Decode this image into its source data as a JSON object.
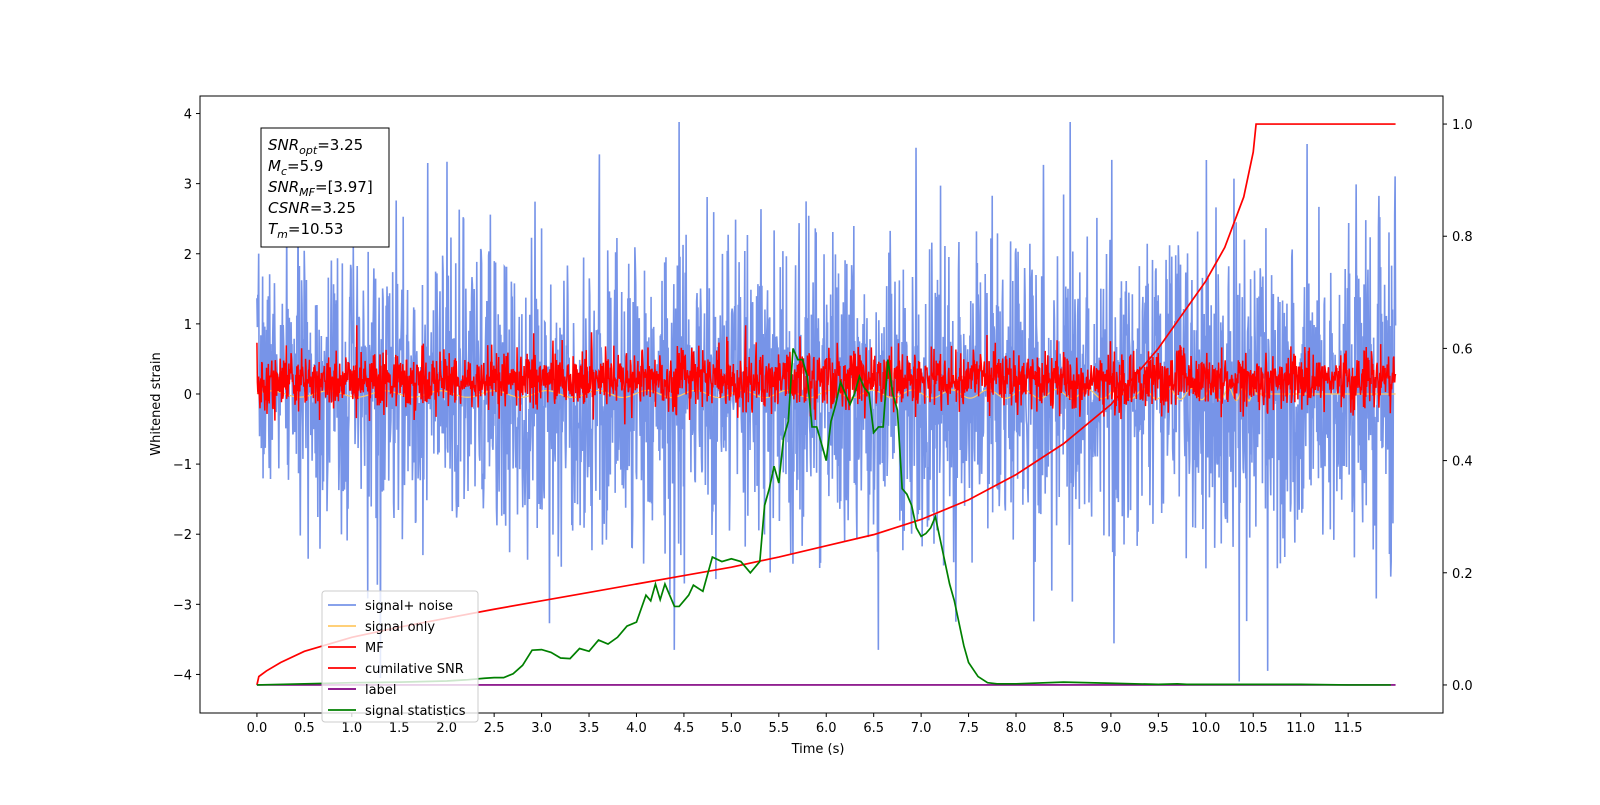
{
  "chart_data": {
    "type": "line",
    "xlabel": "Time (s)",
    "ylabel": "Whitened strain",
    "xlim": [
      -0.6,
      12.5
    ],
    "ylim": [
      -4.55,
      4.25
    ],
    "ylim_right": [
      -0.05,
      1.05
    ],
    "xticks": [
      0.0,
      0.5,
      1.0,
      1.5,
      2.0,
      2.5,
      3.0,
      3.5,
      4.0,
      4.5,
      5.0,
      5.5,
      6.0,
      6.5,
      7.0,
      7.5,
      8.0,
      8.5,
      9.0,
      9.5,
      10.0,
      10.5,
      11.0,
      11.5
    ],
    "xtick_labels": [
      "0.0",
      "0.5",
      "1.0",
      "1.5",
      "2.0",
      "2.5",
      "3.0",
      "3.5",
      "4.0",
      "4.5",
      "5.0",
      "5.5",
      "6.0",
      "6.5",
      "7.0",
      "7.5",
      "8.0",
      "8.5",
      "9.0",
      "9.5",
      "10.0",
      "10.5",
      "11.0",
      "11.5"
    ],
    "yticks": [
      -4,
      -3,
      -2,
      -1,
      0,
      1,
      2,
      3,
      4
    ],
    "ytick_labels": [
      "−4",
      "−3",
      "−2",
      "−1",
      "0",
      "1",
      "2",
      "3",
      "4"
    ],
    "yticks_right": [
      0.0,
      0.2,
      0.4,
      0.6,
      0.8,
      1.0
    ],
    "ytick_labels_right": [
      "0.0",
      "0.2",
      "0.4",
      "0.6",
      "0.8",
      "1.0"
    ],
    "grid": false,
    "legend_position": "lower-left",
    "stats_box": [
      {
        "sym": "SNR",
        "sub": "opt",
        "value": "=3.25"
      },
      {
        "sym": "M",
        "sub": "c",
        "value": "=5.9"
      },
      {
        "sym": "SNR",
        "sub": "MF",
        "value": "=[3.97]"
      },
      {
        "sym": "CSNR",
        "sub": "",
        "value": "=3.25"
      },
      {
        "sym": "T",
        "sub": "m",
        "value": "=10.53"
      }
    ],
    "series": [
      {
        "name": "signal+ noise",
        "axis": "left",
        "color": "#7794e8",
        "kind": "noise",
        "x_range": [
          0.0,
          12.0
        ],
        "envelope": [
          [
            0.0,
            2.6,
            -2.0
          ],
          [
            1.0,
            3.3,
            -3.2
          ],
          [
            3.0,
            3.4,
            -3.4
          ],
          [
            6.0,
            3.5,
            -3.5
          ],
          [
            9.0,
            3.8,
            -3.6
          ],
          [
            12.0,
            3.6,
            -3.5
          ]
        ],
        "peaks": [
          [
            4.45,
            3.88
          ],
          [
            8.57,
            3.88
          ],
          [
            10.35,
            3.84
          ],
          [
            1.3,
            -4.05
          ],
          [
            10.35,
            -4.1
          ],
          [
            10.65,
            -3.95
          ],
          [
            4.4,
            -3.65
          ],
          [
            6.55,
            -3.65
          ]
        ]
      },
      {
        "name": "signal only",
        "axis": "left",
        "color": "#ffc966",
        "kind": "chirp",
        "x_range": [
          0.0,
          12.0
        ],
        "peak_time": 10.53
      },
      {
        "name": "MF",
        "axis": "left",
        "color": "#ff0000",
        "kind": "noise",
        "x_range": [
          0.0,
          12.0
        ],
        "envelope": [
          [
            0.0,
            0.75,
            -0.45
          ],
          [
            3.0,
            0.9,
            -0.45
          ],
          [
            6.0,
            0.9,
            -0.45
          ],
          [
            12.0,
            0.8,
            -0.45
          ]
        ],
        "peaks": [
          [
            1.05,
            0.98
          ],
          [
            5.15,
            0.98
          ],
          [
            0.0,
            0.73
          ]
        ]
      },
      {
        "name": "cumilative SNR",
        "axis": "right",
        "color": "#ff0000",
        "kind": "line",
        "x": [
          0.0,
          0.02,
          0.1,
          0.25,
          0.5,
          1.0,
          1.5,
          2.0,
          2.5,
          3.0,
          3.5,
          4.0,
          4.5,
          5.0,
          5.5,
          6.0,
          6.5,
          7.0,
          7.5,
          8.0,
          8.5,
          9.0,
          9.5,
          10.0,
          10.2,
          10.4,
          10.5,
          10.53,
          12.0
        ],
        "y": [
          0.0,
          0.015,
          0.025,
          0.04,
          0.06,
          0.085,
          0.103,
          0.119,
          0.135,
          0.15,
          0.165,
          0.18,
          0.195,
          0.21,
          0.228,
          0.248,
          0.268,
          0.295,
          0.33,
          0.375,
          0.43,
          0.5,
          0.6,
          0.72,
          0.78,
          0.87,
          0.95,
          1.0,
          1.0
        ]
      },
      {
        "name": "label",
        "axis": "right",
        "color": "#800080",
        "kind": "line",
        "x": [
          0.0,
          12.0
        ],
        "y": [
          0.0,
          0.0
        ]
      },
      {
        "name": "signal statistics",
        "axis": "right",
        "color": "#008000",
        "kind": "line",
        "x": [
          0.0,
          0.5,
          1.0,
          1.5,
          2.0,
          2.2,
          2.4,
          2.5,
          2.6,
          2.7,
          2.8,
          2.9,
          3.0,
          3.1,
          3.2,
          3.3,
          3.4,
          3.5,
          3.6,
          3.7,
          3.8,
          3.9,
          4.0,
          4.1,
          4.15,
          4.2,
          4.25,
          4.3,
          4.35,
          4.4,
          4.45,
          4.5,
          4.55,
          4.6,
          4.7,
          4.8,
          4.9,
          5.0,
          5.1,
          5.2,
          5.3,
          5.35,
          5.4,
          5.45,
          5.5,
          5.55,
          5.6,
          5.65,
          5.7,
          5.75,
          5.8,
          5.85,
          5.9,
          5.95,
          6.0,
          6.05,
          6.1,
          6.15,
          6.2,
          6.25,
          6.3,
          6.35,
          6.4,
          6.45,
          6.5,
          6.55,
          6.6,
          6.65,
          6.7,
          6.75,
          6.8,
          6.85,
          6.9,
          6.95,
          7.0,
          7.05,
          7.1,
          7.15,
          7.2,
          7.25,
          7.3,
          7.35,
          7.4,
          7.45,
          7.5,
          7.6,
          7.7,
          7.8,
          8.0,
          8.5,
          9.0,
          9.5,
          9.7,
          9.8,
          10.0,
          10.5,
          11.0,
          11.5,
          11.95
        ],
        "y": [
          0.0,
          0.002,
          0.004,
          0.005,
          0.007,
          0.009,
          0.012,
          0.013,
          0.013,
          0.02,
          0.035,
          0.062,
          0.063,
          0.058,
          0.048,
          0.047,
          0.065,
          0.06,
          0.08,
          0.073,
          0.085,
          0.105,
          0.112,
          0.16,
          0.15,
          0.18,
          0.152,
          0.18,
          0.16,
          0.14,
          0.14,
          0.15,
          0.16,
          0.178,
          0.167,
          0.228,
          0.22,
          0.225,
          0.22,
          0.2,
          0.22,
          0.32,
          0.35,
          0.39,
          0.36,
          0.44,
          0.47,
          0.6,
          0.58,
          0.58,
          0.55,
          0.46,
          0.46,
          0.43,
          0.4,
          0.47,
          0.5,
          0.54,
          0.52,
          0.5,
          0.52,
          0.55,
          0.53,
          0.52,
          0.45,
          0.46,
          0.46,
          0.58,
          0.52,
          0.49,
          0.35,
          0.34,
          0.32,
          0.28,
          0.265,
          0.27,
          0.28,
          0.3,
          0.26,
          0.22,
          0.18,
          0.15,
          0.11,
          0.07,
          0.04,
          0.015,
          0.004,
          0.002,
          0.002,
          0.005,
          0.003,
          0.001,
          0.002,
          0.001,
          0.001,
          0.001,
          0.001,
          0.0,
          0.0
        ]
      }
    ]
  }
}
